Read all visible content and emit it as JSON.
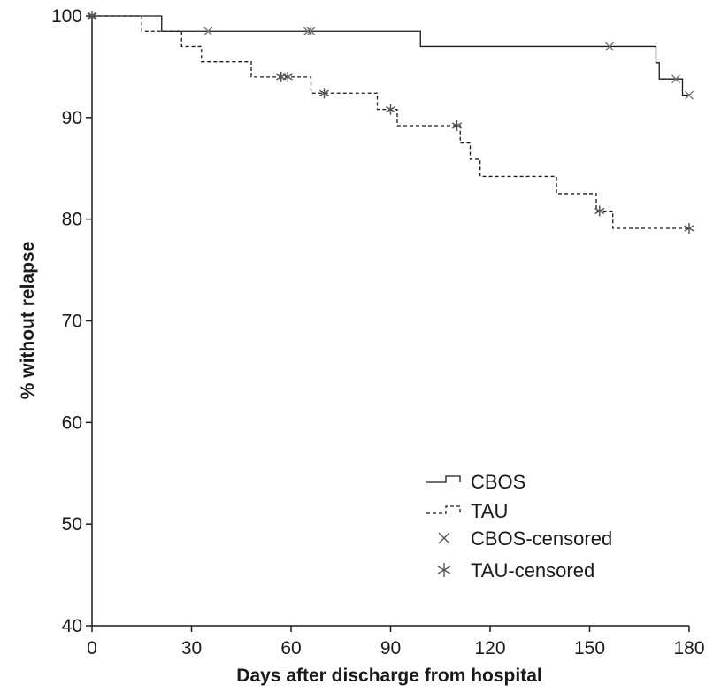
{
  "chart_data": {
    "type": "line",
    "subtype": "kaplan-meier step curve",
    "title": "",
    "xlabel": "Days after discharge from hospital",
    "ylabel": "% without relapse",
    "xlim": [
      0,
      180
    ],
    "ylim": [
      40,
      100
    ],
    "xticks": [
      0,
      30,
      60,
      90,
      120,
      150,
      180
    ],
    "yticks": [
      40,
      50,
      60,
      70,
      80,
      90,
      100
    ],
    "grid": false,
    "legend_position": "lower-right",
    "series": [
      {
        "name": "CBOS",
        "line_style": "solid",
        "color": "#1a1a1a",
        "steps": [
          [
            0,
            100
          ],
          [
            21,
            98.5
          ],
          [
            99,
            97
          ],
          [
            170,
            95.4
          ],
          [
            171,
            93.8
          ],
          [
            178,
            92.2
          ]
        ],
        "end_x": 180
      },
      {
        "name": "TAU",
        "line_style": "dashed",
        "color": "#1a1a1a",
        "steps": [
          [
            0,
            100
          ],
          [
            15,
            98.5
          ],
          [
            27,
            97
          ],
          [
            33,
            95.5
          ],
          [
            48,
            94
          ],
          [
            66,
            92.4
          ],
          [
            86,
            90.8
          ],
          [
            92,
            89.2
          ],
          [
            111,
            87.5
          ],
          [
            114,
            85.9
          ],
          [
            117,
            84.2
          ],
          [
            140,
            82.5
          ],
          [
            152,
            80.8
          ],
          [
            157,
            79.1
          ]
        ],
        "end_x": 180
      },
      {
        "name": "CBOS-censored",
        "marker": "x",
        "color": "#777777",
        "points": [
          [
            0,
            100
          ],
          [
            35,
            98.5
          ],
          [
            65,
            98.5
          ],
          [
            66,
            98.5
          ],
          [
            156,
            97
          ],
          [
            176,
            93.8
          ],
          [
            180,
            92.2
          ]
        ]
      },
      {
        "name": "TAU-censored",
        "marker": "star",
        "color": "#555555",
        "points": [
          [
            0,
            100
          ],
          [
            57,
            94
          ],
          [
            59,
            94
          ],
          [
            70,
            92.4
          ],
          [
            90,
            90.8
          ],
          [
            110,
            89.2
          ],
          [
            153,
            80.8
          ],
          [
            180,
            79.1
          ]
        ]
      }
    ]
  },
  "legend": {
    "items": [
      "CBOS",
      "TAU",
      "CBOS-censored",
      "TAU-censored"
    ]
  }
}
